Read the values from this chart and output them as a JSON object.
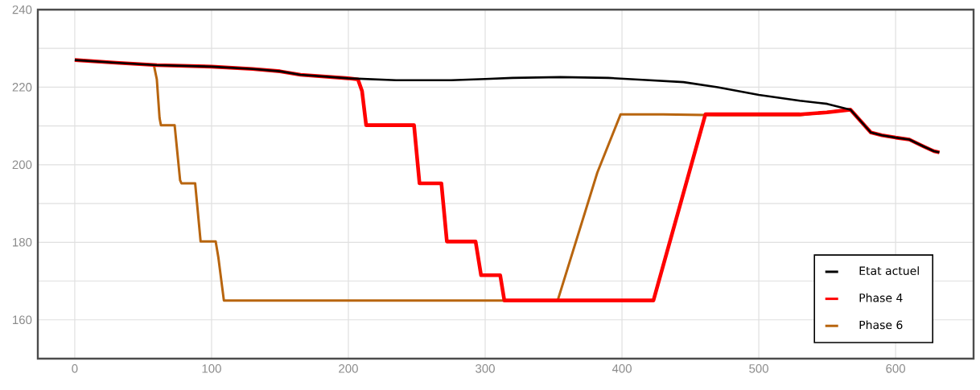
{
  "chart_data": {
    "type": "line",
    "xlim": [
      -27,
      657
    ],
    "ylim": [
      150,
      240
    ],
    "xticks": [
      0,
      100,
      200,
      300,
      400,
      500,
      600
    ],
    "yticks": [
      160,
      {
        "value": 170,
        "label": null
      },
      180,
      {
        "value": 190,
        "label": null
      },
      200,
      {
        "value": 210,
        "label": null
      },
      220,
      {
        "value": 230,
        "label": null
      },
      240
    ],
    "grid": true,
    "legend": "bottom right",
    "marker": "none",
    "line_style": "solid",
    "series": [
      {
        "name": "Etat actuel",
        "color": "#000000",
        "x": [
          0,
          30,
          60,
          100,
          130,
          150,
          165,
          200,
          235,
          275,
          300,
          320,
          355,
          390,
          415,
          445,
          470,
          500,
          530,
          550,
          567,
          582,
          590,
          600,
          610,
          620,
          628,
          632
        ],
        "values": [
          227,
          226.3,
          225.7,
          225.3,
          224.7,
          224.1,
          223.2,
          222.3,
          221.8,
          221.8,
          222.1,
          222.4,
          222.6,
          222.4,
          221.9,
          221.3,
          220,
          218,
          216.5,
          215.7,
          214.2,
          208.3,
          207.6,
          207,
          206.5,
          204.8,
          203.5,
          203.2
        ]
      },
      {
        "name": "Phase 4",
        "color": "#ff0000",
        "x": [
          0,
          30,
          60,
          100,
          130,
          150,
          165,
          200,
          207,
          210,
          213,
          248,
          252,
          268,
          272,
          293,
          297,
          311,
          314,
          423,
          461,
          530,
          550,
          567,
          582,
          590,
          600,
          610,
          620,
          628,
          632
        ],
        "values": [
          227,
          226.3,
          225.7,
          225.3,
          224.7,
          224.1,
          223.2,
          222.3,
          222,
          219,
          210.2,
          210.2,
          195.2,
          195.2,
          180.2,
          180.2,
          171.5,
          171.5,
          165,
          165,
          213,
          213,
          213.5,
          214.2,
          208.3,
          207.6,
          207,
          206.5,
          204.8,
          203.5,
          203.2
        ]
      },
      {
        "name": "Phase 6",
        "color": "#b8650f",
        "x": [
          58,
          60,
          62,
          63,
          73,
          77,
          78,
          88,
          92,
          103,
          105,
          109,
          353,
          382,
          399,
          430,
          470,
          530,
          550,
          567
        ],
        "values": [
          225.4,
          222,
          212,
          210.2,
          210.2,
          196,
          195.2,
          195.2,
          180.2,
          180.2,
          176,
          165,
          165,
          198,
          213,
          213,
          212.8,
          212.8,
          213.6,
          214.2
        ]
      }
    ]
  }
}
